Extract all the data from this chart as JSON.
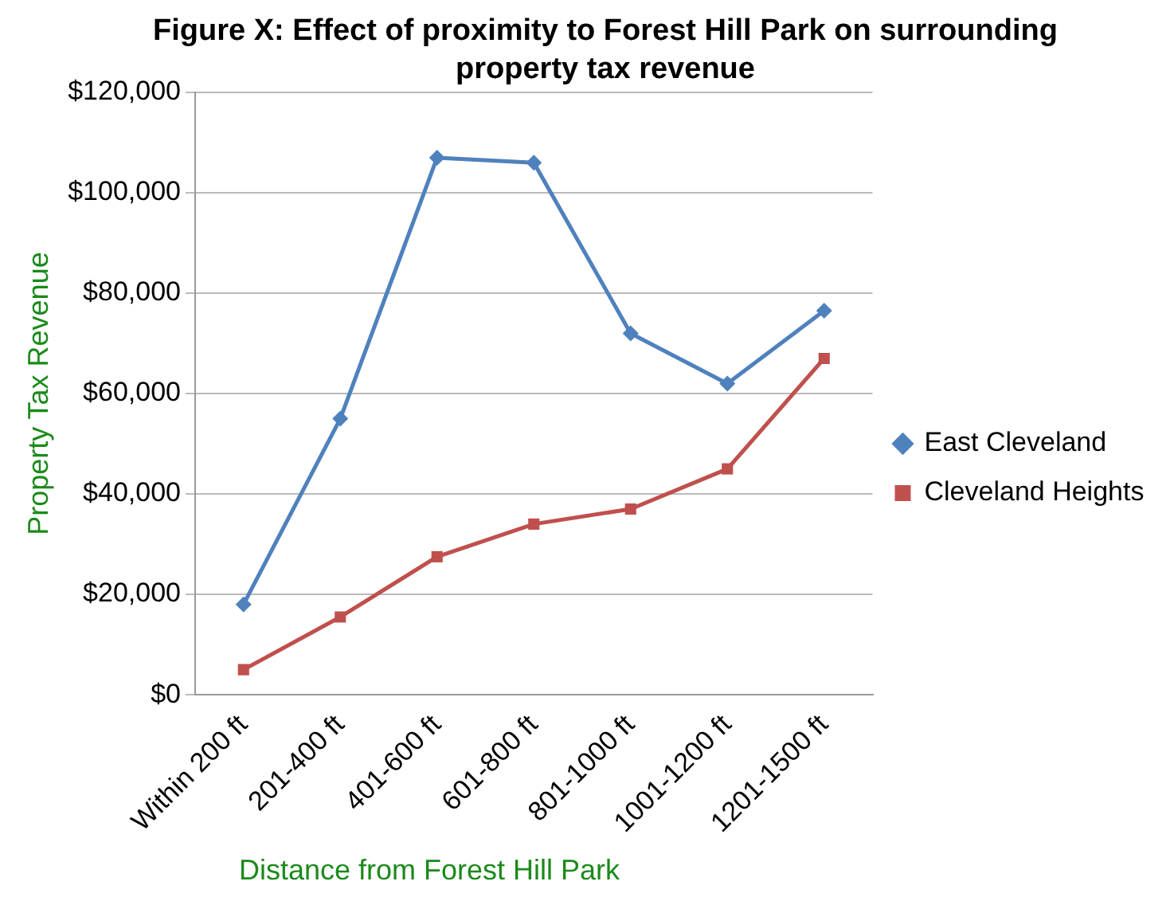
{
  "chart_data": {
    "type": "line",
    "title": "Figure X: Effect of proximity to Forest Hill Park on surrounding property tax revenue",
    "xlabel": "Distance from Forest Hill Park",
    "ylabel": "Property Tax Revenue",
    "categories": [
      "Within 200 ft",
      "201-400 ft",
      "401-600 ft",
      "601-800 ft",
      "801-1000 ft",
      "1001-1200 ft",
      "1201-1500 ft"
    ],
    "series": [
      {
        "name": "East Cleveland",
        "color": "#4f81bd",
        "marker": "diamond",
        "values": [
          18000,
          55000,
          107000,
          106000,
          72000,
          62000,
          76500
        ]
      },
      {
        "name": "Cleveland Heights",
        "color": "#c0504d",
        "marker": "square",
        "values": [
          5000,
          15500,
          27500,
          34000,
          37000,
          45000,
          67000
        ]
      }
    ],
    "ylim": [
      0,
      120000
    ],
    "yticks": [
      {
        "value": 0,
        "label": "$0"
      },
      {
        "value": 20000,
        "label": "$20,000"
      },
      {
        "value": 40000,
        "label": "$40,000"
      },
      {
        "value": 60000,
        "label": "$60,000"
      },
      {
        "value": 80000,
        "label": "$80,000"
      },
      {
        "value": 100000,
        "label": "$100,000"
      },
      {
        "value": 120000,
        "label": "$120,000"
      }
    ],
    "grid": "y",
    "legend": "right"
  }
}
